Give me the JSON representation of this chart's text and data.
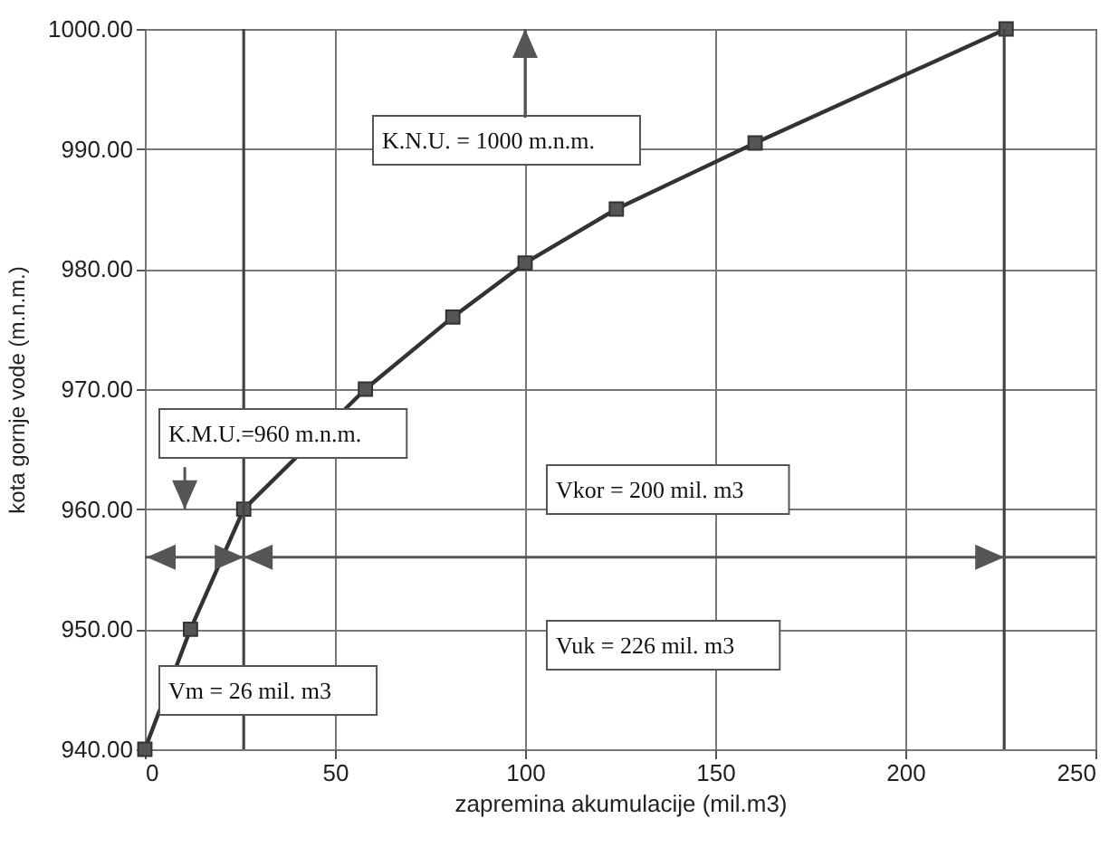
{
  "chart_data": {
    "type": "line",
    "xlabel": "zapremina akumulacije (mil.m3)",
    "ylabel": "kota gornje vode (m.n.m.)",
    "series": [
      {
        "color": "#333333",
        "x": [
          0,
          12,
          26,
          58,
          81,
          100,
          124,
          160.5,
          226.5
        ],
        "values": [
          940,
          950,
          960,
          970,
          976,
          980.5,
          985,
          990.5,
          1000
        ]
      }
    ],
    "marker": "square",
    "line_style": "solid",
    "grid": true,
    "xlim": [
      0,
      250
    ],
    "xticks": [
      0,
      50,
      100,
      150,
      200,
      250
    ],
    "ylim": [
      940,
      1000
    ],
    "yticks": [
      {
        "value": 940,
        "label": "940.00"
      },
      {
        "value": 950,
        "label": "950.00"
      },
      {
        "value": 960,
        "label": "960.00"
      },
      {
        "value": 970,
        "label": "970.00"
      },
      {
        "value": 980,
        "label": "980.00"
      },
      {
        "value": 990,
        "label": "990.00"
      },
      {
        "value": 1000,
        "label": "1000.00"
      }
    ],
    "ref_lines": [
      {
        "axis": "x",
        "value": 26,
        "color": "#444444"
      },
      {
        "axis": "x",
        "value": 226,
        "color": "#444444"
      },
      {
        "axis": "y",
        "value": 956,
        "color": "#555555"
      }
    ],
    "annotations": [
      "K.N.U. = 1000 m.n.m.",
      "K.M.U.=960 m.n.m.",
      "Vkor = 200 mil. m3",
      "Vuk = 226 mil. m3",
      "Vm = 26 mil. m3"
    ]
  }
}
